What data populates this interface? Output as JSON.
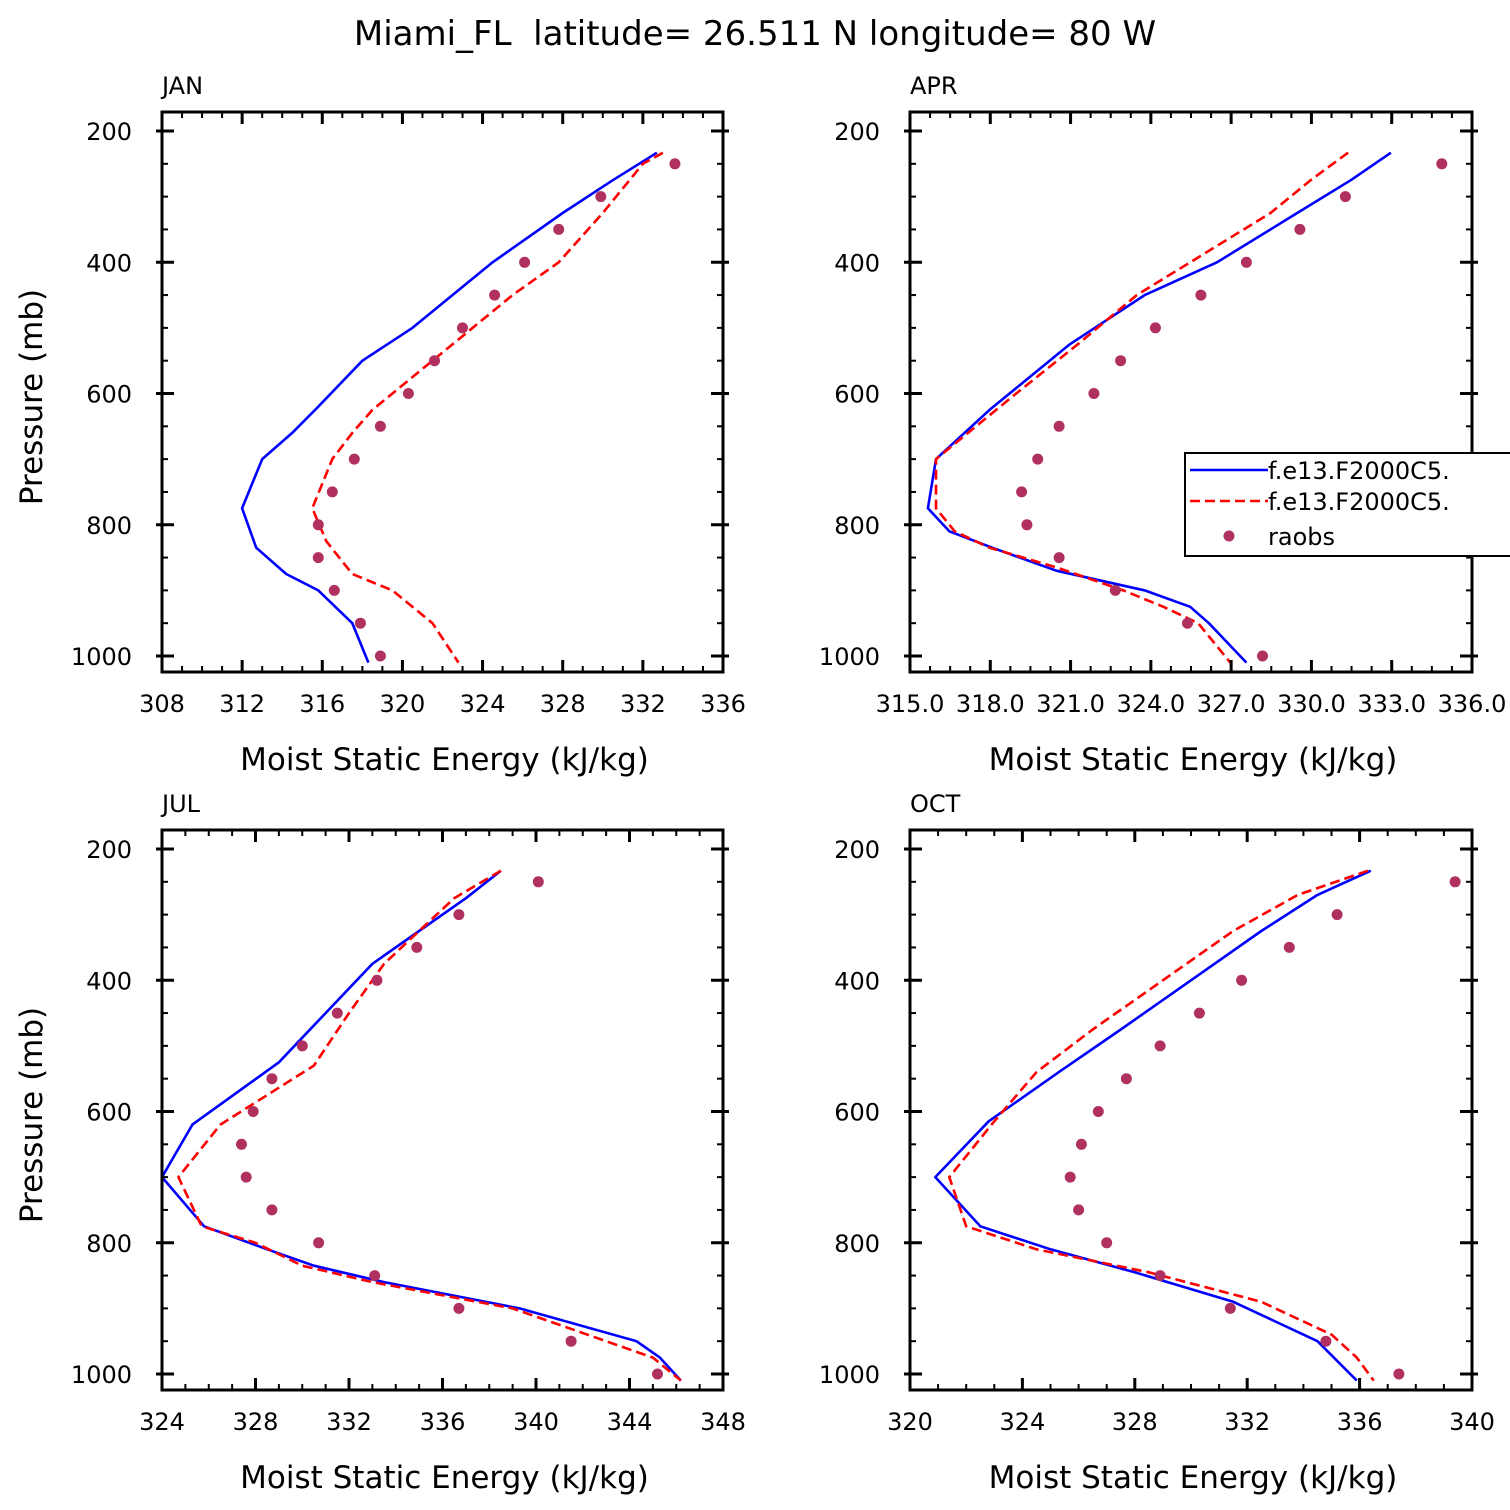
{
  "figure_title": "Miami_FL  latitude= 26.511 N longitude= 80 W",
  "legend": {
    "entries": [
      {
        "label": "f.e13.F2000C5.",
        "style": "solid",
        "color": "#0000ff"
      },
      {
        "label": "f.e13.F2000C5.",
        "style": "dashed",
        "color": "#ff0000"
      },
      {
        "label": "raobs",
        "style": "marker",
        "color": "#b03060"
      }
    ]
  },
  "chart_data": [
    {
      "type": "line",
      "title": "JAN",
      "xlabel": "Moist Static Energy (kJ/kg)",
      "ylabel": "Pressure (mb)",
      "xlim": [
        308,
        336
      ],
      "ylim": [
        1000,
        200
      ],
      "xticks": [
        308,
        312,
        316,
        320,
        324,
        328,
        332,
        336
      ],
      "xtick_labels": [
        "308",
        "312",
        "316",
        "320",
        "324",
        "328",
        "332",
        "336"
      ],
      "yticks": [
        200,
        400,
        600,
        800,
        1000
      ],
      "ytick_labels": [
        "200",
        "400",
        "600",
        "800",
        "1000"
      ],
      "series": [
        {
          "style": "solid",
          "color": "#0000ff",
          "x": [
            332.7,
            330.5,
            328.0,
            324.5,
            320.5,
            318.0,
            315.8,
            314.5,
            313.0,
            312.0,
            312.7,
            314.2,
            315.8,
            317.5,
            318.3
          ],
          "y": [
            233,
            275,
            325,
            400,
            500,
            550,
            620,
            660,
            700,
            775,
            835,
            875,
            900,
            950,
            1010
          ]
        },
        {
          "style": "dashed",
          "color": "#ff0000",
          "x": [
            333.0,
            332.0,
            330.0,
            327.8,
            325.5,
            323.5,
            321.5,
            318.5,
            317.5,
            316.5,
            315.5,
            316.2,
            317.5,
            319.5,
            321.5,
            322.8
          ],
          "y": [
            233,
            250,
            325,
            400,
            450,
            500,
            550,
            625,
            660,
            700,
            775,
            825,
            875,
            900,
            950,
            1010
          ]
        },
        {
          "style": "marker",
          "color": "#b03060",
          "x": [
            333.6,
            329.9,
            327.8,
            326.1,
            324.6,
            323.0,
            321.6,
            320.3,
            318.9,
            317.6,
            316.5,
            315.8,
            315.8,
            316.6,
            317.9,
            318.9
          ],
          "y": [
            250,
            300,
            350,
            400,
            450,
            500,
            550,
            600,
            650,
            700,
            750,
            800,
            850,
            900,
            950,
            1000
          ]
        }
      ]
    },
    {
      "type": "line",
      "title": "APR",
      "xlabel": "Moist Static Energy (kJ/kg)",
      "ylabel": "",
      "xlim": [
        315.03,
        336.03
      ],
      "ylim": [
        1000,
        200
      ],
      "xticks": [
        315.03,
        318.03,
        321.03,
        324.03,
        327.03,
        330.03,
        333.03,
        336.03
      ],
      "xtick_labels": [
        "315.0",
        "318.0",
        "321.0",
        "324.0",
        "327.0",
        "330.0",
        "333.0",
        "336.0"
      ],
      "yticks": [
        200,
        400,
        600,
        800,
        1000
      ],
      "ytick_labels": [
        "200",
        "400",
        "600",
        "800",
        "1000"
      ],
      "series": [
        {
          "style": "solid",
          "color": "#0000ff",
          "x": [
            333.0,
            331.5,
            329.5,
            326.5,
            323.8,
            321.0,
            318.0,
            316.0,
            315.7,
            316.5,
            318.1,
            320.5,
            323.8,
            325.5,
            326.2,
            327.6
          ],
          "y": [
            233,
            275,
            325,
            400,
            450,
            525,
            625,
            700,
            775,
            810,
            835,
            870,
            900,
            925,
            950,
            1010
          ]
        },
        {
          "style": "dashed",
          "color": "#ff0000",
          "x": [
            331.4,
            330.0,
            328.5,
            325.5,
            323.5,
            321.3,
            319.0,
            316.0,
            316.0,
            316.7,
            318.0,
            320.5,
            323.0,
            324.5,
            325.8,
            327.0
          ],
          "y": [
            233,
            275,
            325,
            400,
            450,
            525,
            600,
            700,
            775,
            810,
            835,
            865,
            900,
            925,
            950,
            1010
          ]
        },
        {
          "style": "marker",
          "color": "#b03060",
          "x": [
            334.9,
            331.3,
            329.6,
            327.6,
            325.9,
            324.2,
            322.9,
            321.9,
            320.6,
            319.8,
            319.2,
            319.4,
            320.6,
            322.7,
            325.4,
            328.2
          ],
          "y": [
            250,
            300,
            350,
            400,
            450,
            500,
            550,
            600,
            650,
            700,
            750,
            800,
            850,
            900,
            950,
            1000
          ]
        }
      ]
    },
    {
      "type": "line",
      "title": "JUL",
      "xlabel": "Moist Static Energy (kJ/kg)",
      "ylabel": "Pressure (mb)",
      "xlim": [
        324,
        348
      ],
      "ylim": [
        1000,
        200
      ],
      "xticks": [
        324,
        328,
        332,
        336,
        340,
        344,
        348
      ],
      "xtick_labels": [
        "324",
        "328",
        "332",
        "336",
        "340",
        "344",
        "348"
      ],
      "yticks": [
        200,
        400,
        600,
        800,
        1000
      ],
      "ytick_labels": [
        "200",
        "400",
        "600",
        "800",
        "1000"
      ],
      "series": [
        {
          "style": "solid",
          "color": "#0000ff",
          "x": [
            338.5,
            337.0,
            335.0,
            333.0,
            331.0,
            329.0,
            325.3,
            324.0,
            325.8,
            328.5,
            330.5,
            333.5,
            339.3,
            344.3,
            345.3,
            346.2
          ],
          "y": [
            233,
            275,
            325,
            375,
            450,
            525,
            620,
            700,
            775,
            810,
            835,
            860,
            900,
            950,
            975,
            1010
          ]
        },
        {
          "style": "dashed",
          "color": "#ff0000",
          "x": [
            338.5,
            336.5,
            335.0,
            333.5,
            332.0,
            330.5,
            326.5,
            324.7,
            325.7,
            328.0,
            330.0,
            333.0,
            339.0,
            343.0,
            345.0,
            346.2
          ],
          "y": [
            233,
            275,
            325,
            375,
            450,
            530,
            620,
            700,
            775,
            800,
            835,
            860,
            900,
            950,
            975,
            1010
          ]
        },
        {
          "style": "marker",
          "color": "#b03060",
          "x": [
            340.1,
            336.7,
            334.9,
            333.2,
            331.5,
            330.0,
            328.7,
            327.9,
            327.4,
            327.6,
            328.7,
            330.7,
            333.1,
            336.7,
            341.5,
            345.2
          ],
          "y": [
            250,
            300,
            350,
            400,
            450,
            500,
            550,
            600,
            650,
            700,
            750,
            800,
            850,
            900,
            950,
            1000
          ]
        }
      ]
    },
    {
      "type": "line",
      "title": "OCT",
      "xlabel": "Moist Static Energy (kJ/kg)",
      "ylabel": "",
      "xlim": [
        320,
        340
      ],
      "ylim": [
        1000,
        200
      ],
      "xticks": [
        320,
        324,
        328,
        332,
        336,
        340
      ],
      "xtick_labels": [
        "320",
        "324",
        "328",
        "332",
        "336",
        "340"
      ],
      "yticks": [
        200,
        400,
        600,
        800,
        1000
      ],
      "ytick_labels": [
        "200",
        "400",
        "600",
        "800",
        "1000"
      ],
      "series": [
        {
          "style": "solid",
          "color": "#0000ff",
          "x": [
            336.4,
            334.5,
            332.5,
            330.0,
            327.5,
            325.3,
            322.8,
            320.9,
            322.5,
            325.0,
            328.0,
            331.5,
            334.5,
            335.9
          ],
          "y": [
            233,
            270,
            325,
            400,
            475,
            540,
            615,
            700,
            775,
            810,
            845,
            890,
            950,
            1010
          ]
        },
        {
          "style": "dashed",
          "color": "#ff0000",
          "x": [
            336.3,
            333.8,
            331.5,
            329.0,
            326.5,
            324.5,
            323.0,
            321.4,
            322.0,
            324.5,
            328.5,
            332.5,
            335.0,
            335.9,
            336.5
          ],
          "y": [
            233,
            270,
            325,
            400,
            475,
            540,
            615,
            700,
            775,
            810,
            845,
            890,
            940,
            975,
            1010
          ]
        },
        {
          "style": "marker",
          "color": "#b03060",
          "x": [
            339.4,
            335.2,
            333.5,
            331.8,
            330.3,
            328.9,
            327.7,
            326.7,
            326.1,
            325.7,
            326.0,
            327.0,
            328.9,
            331.4,
            334.8,
            337.4
          ],
          "y": [
            250,
            300,
            350,
            400,
            450,
            500,
            550,
            600,
            650,
            700,
            750,
            800,
            850,
            900,
            950,
            1000
          ]
        }
      ]
    }
  ]
}
